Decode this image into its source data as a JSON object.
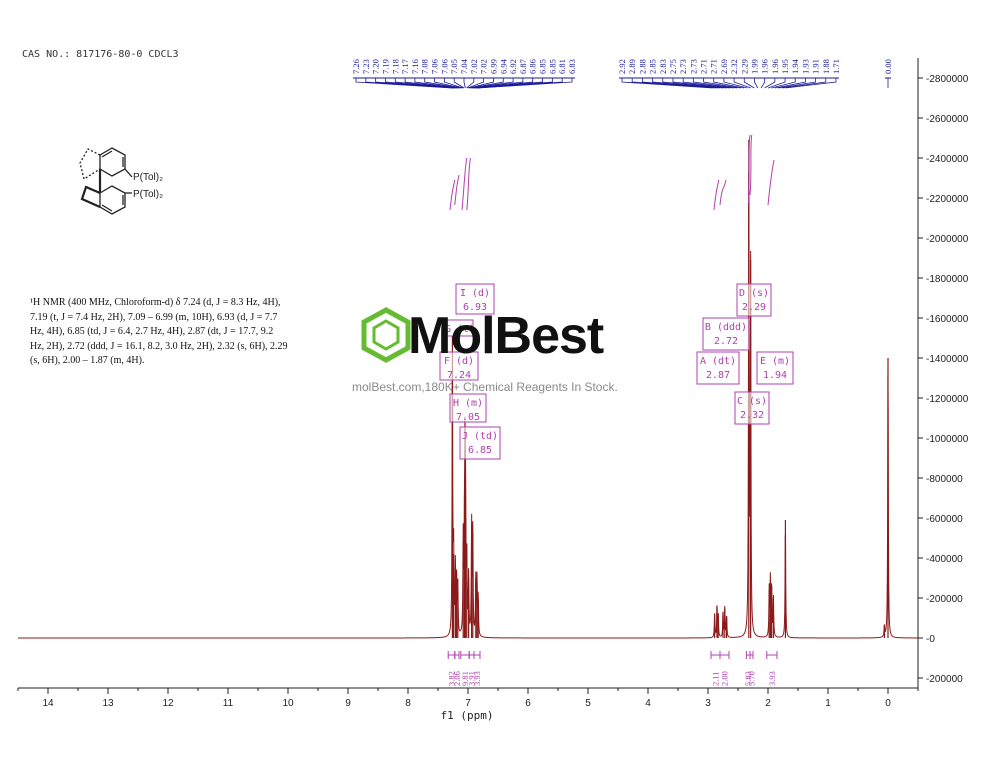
{
  "header": {
    "cas_label": "CAS NO.: 817176-80-0 CDCL3"
  },
  "nmr_text": {
    "lines": [
      "¹H NMR (400 MHz, Chloroform-d) δ 7.24 (d, J = 8.3 Hz, 4H),",
      "7.19 (t, J = 7.4 Hz, 2H), 7.09 – 6.99 (m, 10H), 6.93 (d, J = 7.7",
      "Hz, 4H), 6.85 (td, J = 6.4, 2.7 Hz, 4H), 2.87 (dt, J = 17.7, 9.2",
      "Hz, 2H), 2.72 (ddd, J = 16.1, 8.2, 3.0 Hz, 2H), 2.32 (s, 6H), 2.29",
      "(s, 6H), 2.00 – 1.87 (m, 4H)."
    ]
  },
  "structure": {
    "p_label_top": "P(Tol)₂",
    "p_label_bottom": "P(Tol)₂"
  },
  "watermark": {
    "brand": "MolBest",
    "tagline": "molBest.com,180K+ Chemical Reagents In Stock."
  },
  "colors": {
    "spectrum": "#8b1a1a",
    "integral": "#b040b0",
    "peak_label": "#1a1a99",
    "box": "#b040b0",
    "brand_green": "#66bb33"
  },
  "chart_data": {
    "type": "line",
    "xlabel": "f1 (ppm)",
    "xlim": [
      14.5,
      -0.5
    ],
    "x_reversed": true,
    "ylim": [
      -250000,
      2900000
    ],
    "x_ticks": [
      14,
      13,
      12,
      11,
      10,
      9,
      8,
      7,
      6,
      5,
      4,
      3,
      2,
      1,
      0
    ],
    "y_ticks": [
      2800000,
      2600000,
      2400000,
      2200000,
      2000000,
      1800000,
      1600000,
      1400000,
      1200000,
      1000000,
      800000,
      600000,
      400000,
      200000,
      0,
      -200000
    ],
    "y_tick_labels": [
      "2800000",
      "2600000",
      "2400000",
      "2200000",
      "2000000",
      "1800000",
      "1600000",
      "1400000",
      "1200000",
      "1000000",
      "800000",
      "600000",
      "400000",
      "200000",
      "0",
      "-200000"
    ],
    "peaks": [
      {
        "ppm": 7.26,
        "height": 1510000
      },
      {
        "ppm": 7.24,
        "height": 420000
      },
      {
        "ppm": 7.21,
        "height": 350000
      },
      {
        "ppm": 7.19,
        "height": 300000
      },
      {
        "ppm": 7.17,
        "height": 260000
      },
      {
        "ppm": 7.08,
        "height": 480000
      },
      {
        "ppm": 7.06,
        "height": 420000
      },
      {
        "ppm": 7.05,
        "height": 850000
      },
      {
        "ppm": 7.04,
        "height": 600000
      },
      {
        "ppm": 7.02,
        "height": 380000
      },
      {
        "ppm": 6.99,
        "height": 300000
      },
      {
        "ppm": 6.94,
        "height": 570000
      },
      {
        "ppm": 6.92,
        "height": 520000
      },
      {
        "ppm": 6.87,
        "height": 300000
      },
      {
        "ppm": 6.85,
        "height": 280000
      },
      {
        "ppm": 6.83,
        "height": 200000
      },
      {
        "ppm": 2.89,
        "height": 120000
      },
      {
        "ppm": 2.85,
        "height": 160000
      },
      {
        "ppm": 2.83,
        "height": 120000
      },
      {
        "ppm": 2.75,
        "height": 130000
      },
      {
        "ppm": 2.72,
        "height": 150000
      },
      {
        "ppm": 2.69,
        "height": 110000
      },
      {
        "ppm": 2.32,
        "height": 2490000
      },
      {
        "ppm": 2.29,
        "height": 1890000
      },
      {
        "ppm": 1.98,
        "height": 240000
      },
      {
        "ppm": 1.96,
        "height": 290000
      },
      {
        "ppm": 1.94,
        "height": 260000
      },
      {
        "ppm": 1.91,
        "height": 200000
      },
      {
        "ppm": 1.71,
        "height": 590000
      },
      {
        "ppm": 0.06,
        "height": 60000
      },
      {
        "ppm": 0.0,
        "height": 1400000
      }
    ],
    "peak_labels_group1": [
      "7.26",
      "7.23",
      "7.20",
      "7.19",
      "7.18",
      "7.17",
      "7.16",
      "7.08",
      "7.06",
      "7.06",
      "7.05",
      "7.04",
      "7.02",
      "7.02",
      "6.99",
      "6.94",
      "6.92",
      "6.87",
      "6.86",
      "6.85",
      "6.85",
      "6.81",
      "6.83"
    ],
    "peak_labels_group2": [
      "2.92",
      "2.89",
      "2.88",
      "2.85",
      "2.83",
      "2.75",
      "2.73",
      "2.73",
      "2.71",
      "2.71",
      "2.69",
      "2.32",
      "2.29",
      "1.99",
      "1.96",
      "1.96",
      "1.95",
      "1.94",
      "1.93",
      "1.91",
      "1.88",
      "1.71"
    ],
    "peak_labels_group3": [
      "0.00"
    ],
    "multiplets": [
      {
        "id": "I",
        "mult": "(d)",
        "shift": "6.93"
      },
      {
        "id": "G",
        "mult": "(t)",
        "shift": ""
      },
      {
        "id": "F",
        "mult": "(d)",
        "shift": "7.24"
      },
      {
        "id": "H",
        "mult": "(m)",
        "shift": "7.05"
      },
      {
        "id": "J",
        "mult": "(td)",
        "shift": "6.85"
      },
      {
        "id": "D",
        "mult": "(s)",
        "shift": "2.29"
      },
      {
        "id": "B",
        "mult": "(ddd)",
        "shift": "2.72"
      },
      {
        "id": "A",
        "mult": "(dt)",
        "shift": "2.87"
      },
      {
        "id": "E",
        "mult": "(m)",
        "shift": "1.94"
      },
      {
        "id": "C",
        "mult": "(s)",
        "shift": "2.32"
      }
    ],
    "integrals": [
      {
        "from": 7.33,
        "to": 7.22,
        "value": "3.82"
      },
      {
        "from": 7.22,
        "to": 7.15,
        "value": "2.06"
      },
      {
        "from": 7.12,
        "to": 6.98,
        "value": "9.81"
      },
      {
        "from": 6.98,
        "to": 6.9,
        "value": "3.91"
      },
      {
        "from": 6.9,
        "to": 6.8,
        "value": "3.93"
      },
      {
        "from": 2.95,
        "to": 2.8,
        "value": "2.11"
      },
      {
        "from": 2.8,
        "to": 2.65,
        "value": "2.00"
      },
      {
        "from": 2.36,
        "to": 2.3,
        "value": "5.83"
      },
      {
        "from": 2.3,
        "to": 2.25,
        "value": "5.70"
      },
      {
        "from": 2.02,
        "to": 1.85,
        "value": "3.93"
      }
    ]
  }
}
